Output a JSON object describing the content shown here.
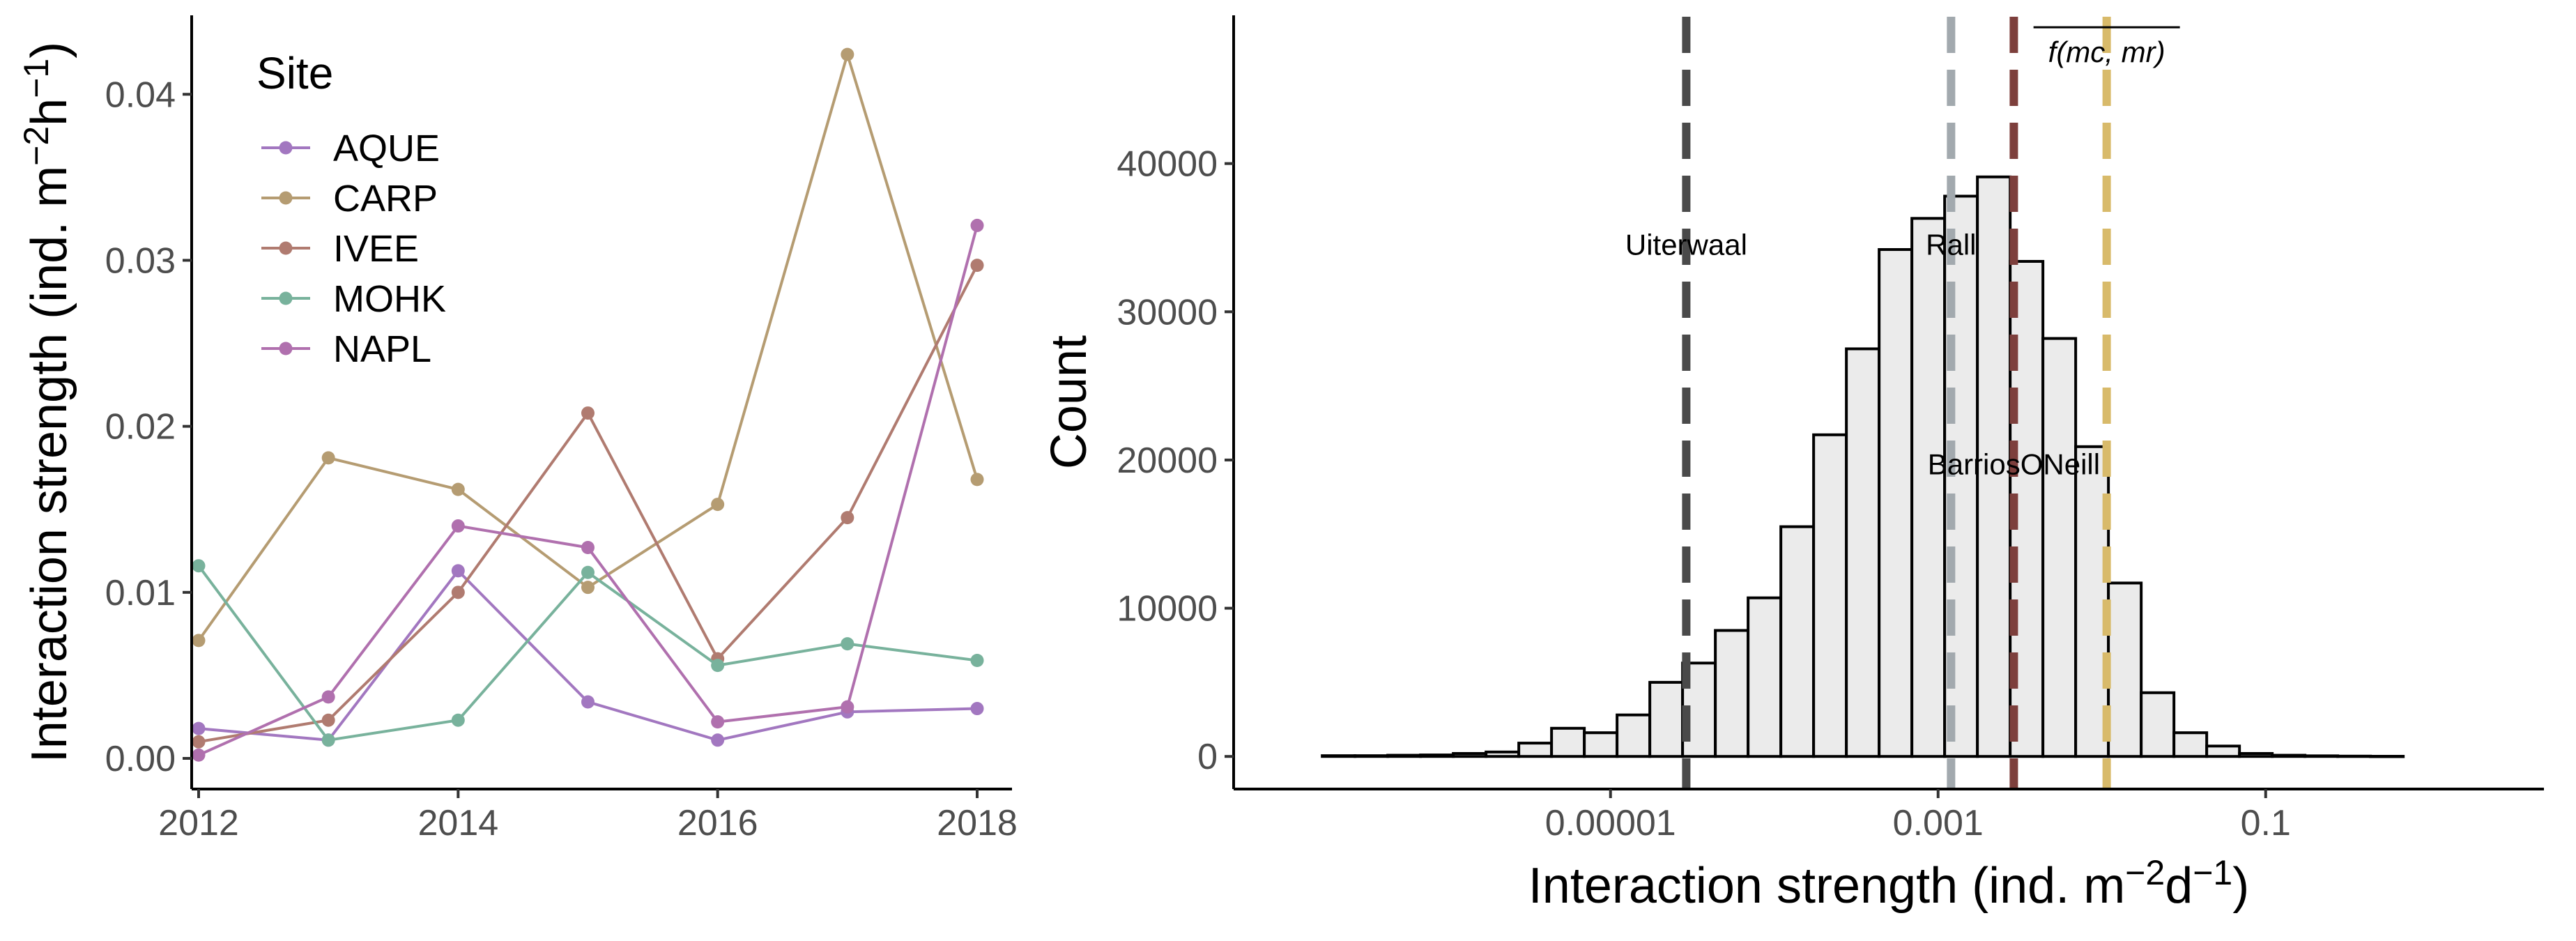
{
  "chart_data": [
    {
      "type": "line",
      "panel": "left",
      "xlabel": "",
      "ylabel_base": "Interaction strength (ind. m",
      "ylabel_sup1": "−2",
      "ylabel_mid": "h",
      "ylabel_sup2": "−1",
      "ylabel_end": ")",
      "xlim": [
        2012,
        2018
      ],
      "ylim": [
        0,
        0.044
      ],
      "x_ticks": [
        2012,
        2014,
        2016,
        2018
      ],
      "x_tick_labels": [
        "2012",
        "2014",
        "2016",
        "2018"
      ],
      "y_ticks": [
        0,
        0.01,
        0.02,
        0.03,
        0.04
      ],
      "y_tick_labels": [
        "0.00",
        "0.01",
        "0.02",
        "0.03",
        "0.04"
      ],
      "grid": false,
      "legend": {
        "title": "Site",
        "placement": "top-left"
      },
      "x": [
        2012,
        2013,
        2014,
        2015,
        2016,
        2017,
        2018
      ],
      "series": [
        {
          "name": "AQUE",
          "color": "#a277c0",
          "values": [
            0.0018,
            0.0011,
            0.0113,
            0.0034,
            0.0011,
            0.0028,
            0.003
          ]
        },
        {
          "name": "CARP",
          "color": "#b59c72",
          "values": [
            0.0071,
            0.0181,
            0.0162,
            0.0103,
            0.0153,
            0.0424,
            0.0168
          ]
        },
        {
          "name": "IVEE",
          "color": "#b07b70",
          "values": [
            0.001,
            0.0023,
            0.01,
            0.0208,
            0.006,
            0.0145,
            0.0297
          ]
        },
        {
          "name": "MOHK",
          "color": "#78b29c",
          "values": [
            0.0116,
            0.0011,
            0.0023,
            0.0112,
            0.0056,
            0.0069,
            0.0059
          ]
        },
        {
          "name": "NAPL",
          "color": "#b070ae",
          "values": [
            0.0002,
            0.0037,
            0.014,
            0.0127,
            0.0022,
            0.0031,
            0.0321
          ]
        }
      ]
    },
    {
      "type": "bar",
      "panel": "right",
      "subtype": "histogram",
      "ylabel": "Count",
      "xlabel_base": "Interaction strength (ind. m",
      "xlabel_sup1": "−2",
      "xlabel_mid": "d",
      "xlabel_sup2": "−1",
      "xlabel_end": ")",
      "x_scale": "log10",
      "xlim": [
        5e-08,
        5
      ],
      "ylim": [
        -2200,
        50000
      ],
      "x_ticks": [
        1e-05,
        0.001,
        0.1
      ],
      "x_tick_labels": [
        "0.00001",
        "0.001",
        "0.1"
      ],
      "y_ticks": [
        0,
        10000,
        20000,
        30000,
        40000
      ],
      "y_tick_labels": [
        "0",
        "10000",
        "20000",
        "30000",
        "40000"
      ],
      "grid": false,
      "bin_width_log10": 0.2,
      "bins_start": [
        -6.76,
        -6.56,
        -6.36,
        -6.16,
        -5.96,
        -5.76,
        -5.56,
        -5.36,
        -5.16,
        -4.96,
        -4.76,
        -4.56,
        -4.36,
        -4.16,
        -3.96,
        -3.76,
        -3.56,
        -3.36,
        -3.16,
        -2.96,
        -2.76,
        -2.56,
        -2.36,
        -2.16,
        -1.96,
        -1.76,
        -1.56,
        -1.36,
        -1.16,
        -0.96,
        -0.76,
        -0.56,
        -0.36
      ],
      "counts": [
        50,
        50,
        80,
        100,
        200,
        300,
        900,
        1900,
        1600,
        2800,
        5000,
        6300,
        8500,
        10700,
        15500,
        21700,
        27500,
        34200,
        36300,
        37800,
        39100,
        33400,
        28200,
        20900,
        11700,
        4300,
        1600,
        700,
        200,
        80,
        40,
        20,
        10
      ],
      "reference_lines": [
        {
          "value": 2.9e-05,
          "label": "Uiterwaal",
          "color": "#4a4a4a",
          "label_count": 34500
        },
        {
          "value": 0.0012,
          "label": "Rall",
          "color": "#a2a9ae",
          "label_count": 34500
        },
        {
          "value": 0.0029,
          "label": "BarriosONeill",
          "color": "#7d3f3c",
          "label_count": 19700
        },
        {
          "value": 0.0107,
          "label": "f(mc, mr)",
          "color": "#d8ba6a",
          "label_count": 47500
        }
      ]
    }
  ]
}
